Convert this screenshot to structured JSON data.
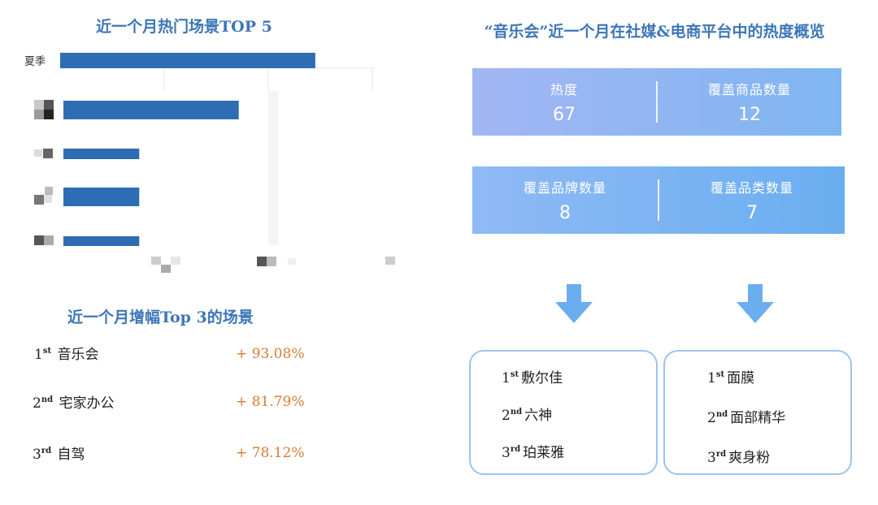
{
  "left_top_title": "近一个月热门场景TOP 5",
  "chart_data": {
    "type": "bar",
    "orientation": "horizontal",
    "title": "近一个月热门场景TOP 5",
    "categories": [
      "夏季",
      "",
      "",
      "",
      ""
    ],
    "values": [
      100,
      70,
      31,
      31,
      31
    ],
    "xlim": [
      0,
      123
    ],
    "grid": true
  },
  "growth_section": {
    "title": "近一个月增幅Top 3的场景",
    "items": [
      {
        "ordinal": "1",
        "suffix": "st",
        "name": "音乐会",
        "change": "+ 93.08%"
      },
      {
        "ordinal": "2",
        "suffix": "nd",
        "name": "宅家办公",
        "change": "+ 81.79%"
      },
      {
        "ordinal": "3",
        "suffix": "rd",
        "name": "自驾",
        "change": "+ 78.12%"
      }
    ]
  },
  "right_title": "“音乐会”近一个月在社媒&电商平台中的热度概览",
  "stats_top": [
    {
      "label": "热度",
      "value": "67"
    },
    {
      "label": "覆盖商品数量",
      "value": "12"
    }
  ],
  "stats_bottom": [
    {
      "label": "覆盖品牌数量",
      "value": "8"
    },
    {
      "label": "覆盖品类数量",
      "value": "7"
    }
  ],
  "brand_ranking": [
    {
      "ordinal": "1",
      "suffix": "st",
      "name": "敷尔佳"
    },
    {
      "ordinal": "2",
      "suffix": "nd",
      "name": "六神"
    },
    {
      "ordinal": "3",
      "suffix": "rd",
      "name": "珀莱雅"
    }
  ],
  "category_ranking": [
    {
      "ordinal": "1",
      "suffix": "st",
      "name": "面膜"
    },
    {
      "ordinal": "2",
      "suffix": "nd",
      "name": "面部精华"
    },
    {
      "ordinal": "3",
      "suffix": "rd",
      "name": "爽身粉"
    }
  ],
  "colors": {
    "bar": "#2e6db4",
    "title": "#3d76b8",
    "growth": "#d97a34",
    "panel_top_start": "#a2b6f3",
    "panel_top_end": "#7fb6f2",
    "panel_bottom_start": "#8fbaf5",
    "panel_bottom_end": "#6aaef0",
    "arrow": "#6aaef0",
    "box_border": "#9cc4ee"
  }
}
